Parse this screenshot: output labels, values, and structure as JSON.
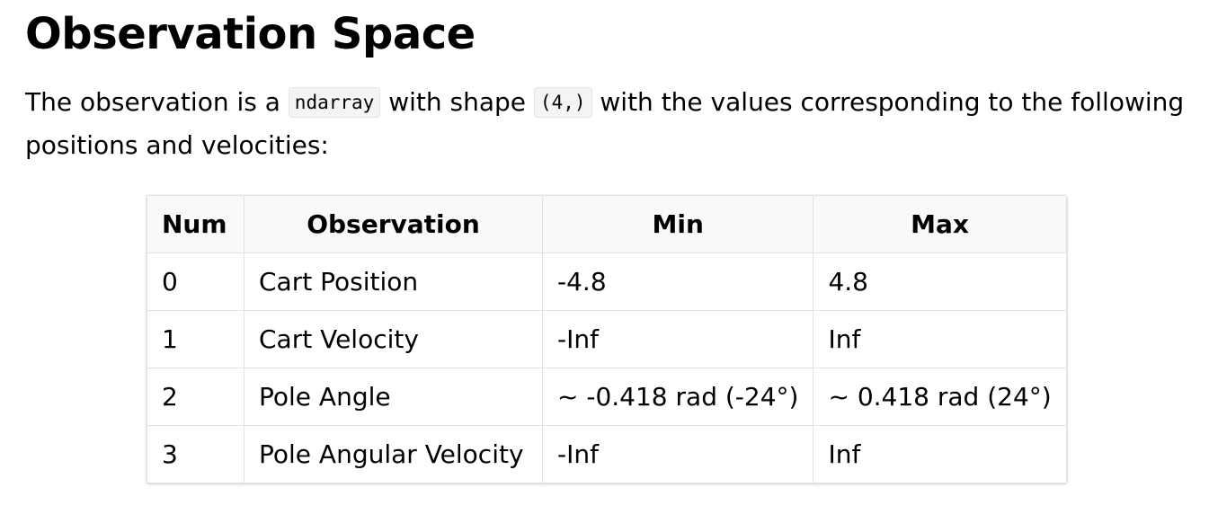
{
  "heading": "Observation Space",
  "intro": {
    "part1": "The observation is a ",
    "code1": "ndarray",
    "part2": " with shape ",
    "code2": "(4,)",
    "part3": " with the values corresponding to the following",
    "line2": "positions and velocities:"
  },
  "table": {
    "headers": [
      "Num",
      "Observation",
      "Min",
      "Max"
    ],
    "rows": [
      [
        "0",
        "Cart Position",
        "-4.8",
        "4.8"
      ],
      [
        "1",
        "Cart Velocity",
        "-Inf",
        "Inf"
      ],
      [
        "2",
        "Pole Angle",
        "~ -0.418 rad (-24°)",
        "~ 0.418 rad (24°)"
      ],
      [
        "3",
        "Pole Angular Velocity",
        "-Inf",
        "Inf"
      ]
    ]
  }
}
